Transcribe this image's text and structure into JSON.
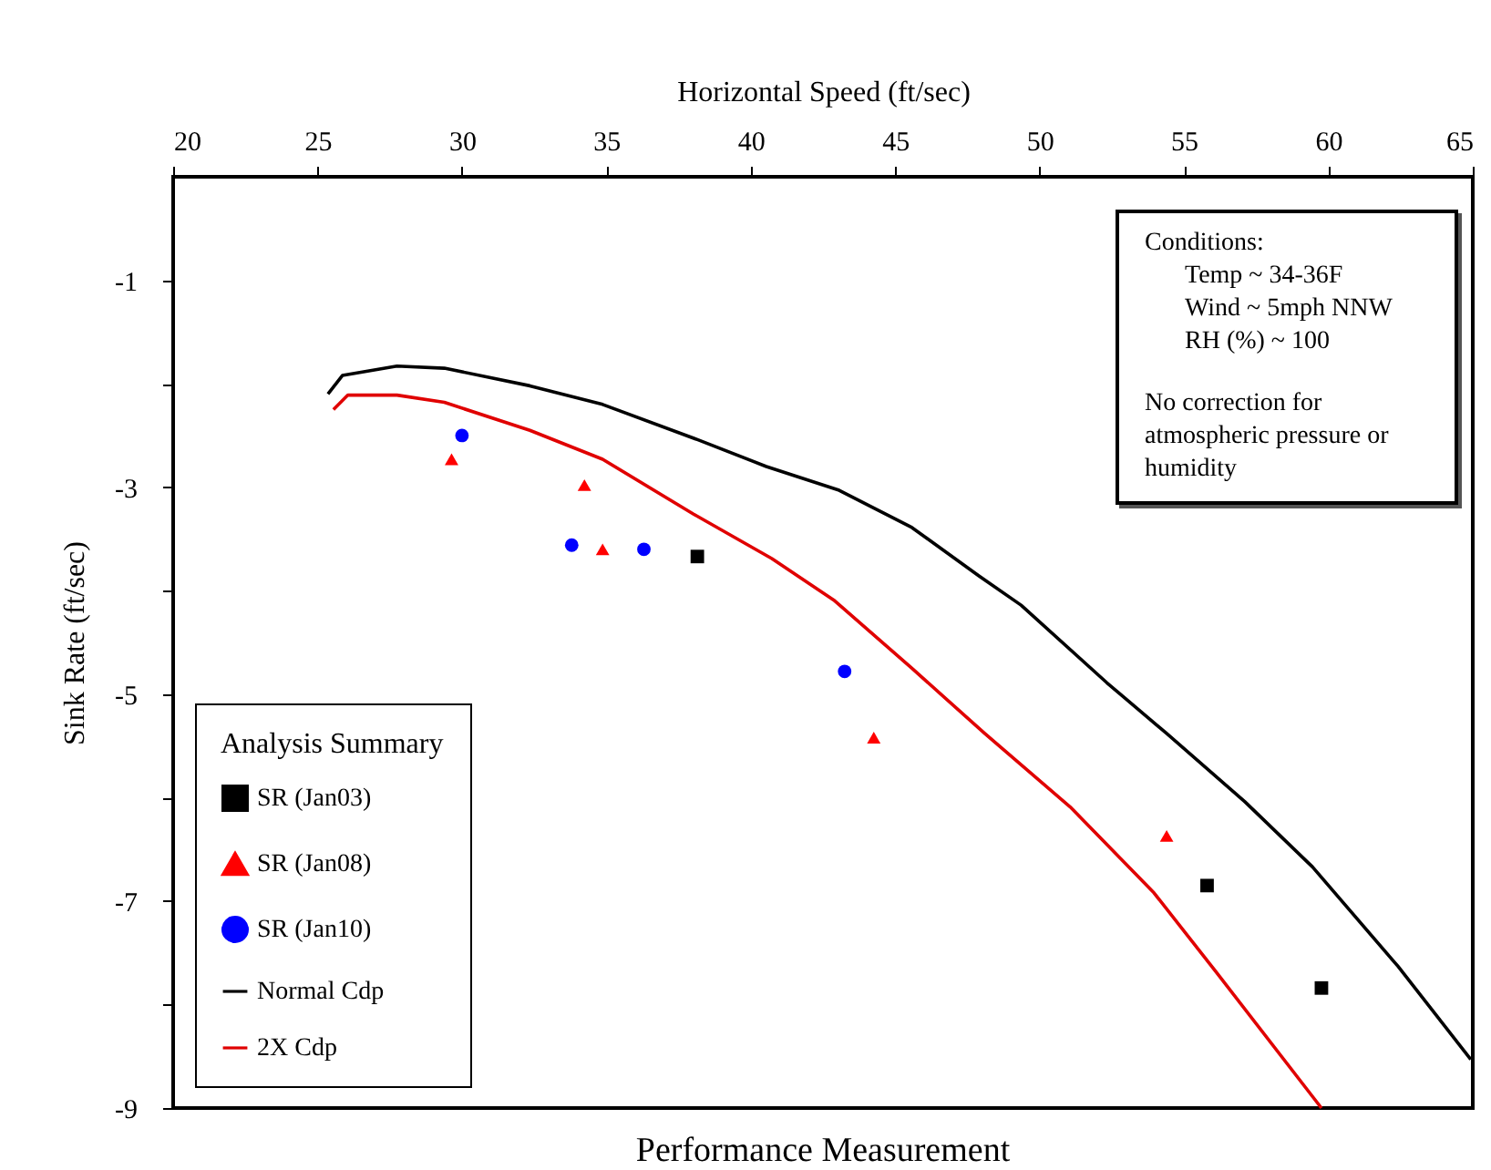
{
  "chart_data": {
    "type": "scatter",
    "title": "Performance Measurement",
    "xlabel": "Horizontal Speed (ft/sec)",
    "ylabel": "Sink Rate (ft/sec)",
    "legend_title": "Analysis Summary",
    "xlim": [
      20,
      65
    ],
    "xticks": [
      20,
      25,
      30,
      35,
      40,
      45,
      50,
      55,
      60,
      65
    ],
    "ylim": [
      -9,
      0
    ],
    "yticks": [
      -9,
      {
        "value": -8,
        "label": null
      },
      -7,
      {
        "value": -6,
        "label": null
      },
      -5,
      {
        "value": -4,
        "label": null
      },
      -3,
      {
        "value": -2,
        "label": null
      },
      -1
    ],
    "grid": false,
    "legend": "bottom left",
    "annotations": [
      "Conditions:",
      "Temp ~ 34-36F",
      "Wind ~ 5mph NNW",
      "RH (%) ~ 100",
      "No correction for atmospheric pressure or humidity"
    ],
    "series": [
      {
        "name": "SR (Jan03)",
        "marker": "square",
        "color": "#000000",
        "x": [
          38.15,
          55.8,
          59.76
        ],
        "values": [
          -3.67,
          -6.85,
          -7.84
        ]
      },
      {
        "name": "SR (Jan08)",
        "marker": "triangle",
        "color": "#ff0000",
        "x": [
          29.64,
          34.24,
          34.87,
          44.26,
          54.4
        ],
        "values": [
          -2.73,
          -2.98,
          -3.6,
          -5.42,
          -6.37
        ]
      },
      {
        "name": "SR (Jan10)",
        "marker": "circle",
        "color": "#0000ff",
        "x": [
          30.0,
          33.8,
          36.3,
          43.25
        ],
        "values": [
          -2.5,
          -3.56,
          -3.6,
          -4.78
        ]
      },
      {
        "name": "Normal Cdp",
        "type": "line",
        "color": "#000000",
        "x": [
          25.36,
          25.86,
          27.75,
          29.39,
          32.35,
          34.87,
          38.15,
          40.54,
          43.06,
          45.58,
          47.91,
          49.36,
          52.33,
          54.4,
          57.11,
          59.45,
          62.41,
          64.93
        ],
        "values": [
          -2.1,
          -1.92,
          -1.83,
          -1.85,
          -2.02,
          -2.2,
          -2.54,
          -2.8,
          -3.03,
          -3.39,
          -3.86,
          -4.14,
          -4.89,
          -5.38,
          -6.04,
          -6.67,
          -7.63,
          -8.53
        ]
      },
      {
        "name": "2X Cdp",
        "type": "line",
        "color": "#e00000",
        "x": [
          25.55,
          26.05,
          27.75,
          29.39,
          32.35,
          34.87,
          38.02,
          40.73,
          42.87,
          45.58,
          48.1,
          51.06,
          53.96,
          56.1,
          59.76
        ],
        "values": [
          -2.25,
          -2.11,
          -2.11,
          -2.18,
          -2.45,
          -2.73,
          -3.26,
          -3.69,
          -4.09,
          -4.75,
          -5.38,
          -6.09,
          -6.92,
          -7.68,
          -9.0
        ]
      }
    ]
  }
}
